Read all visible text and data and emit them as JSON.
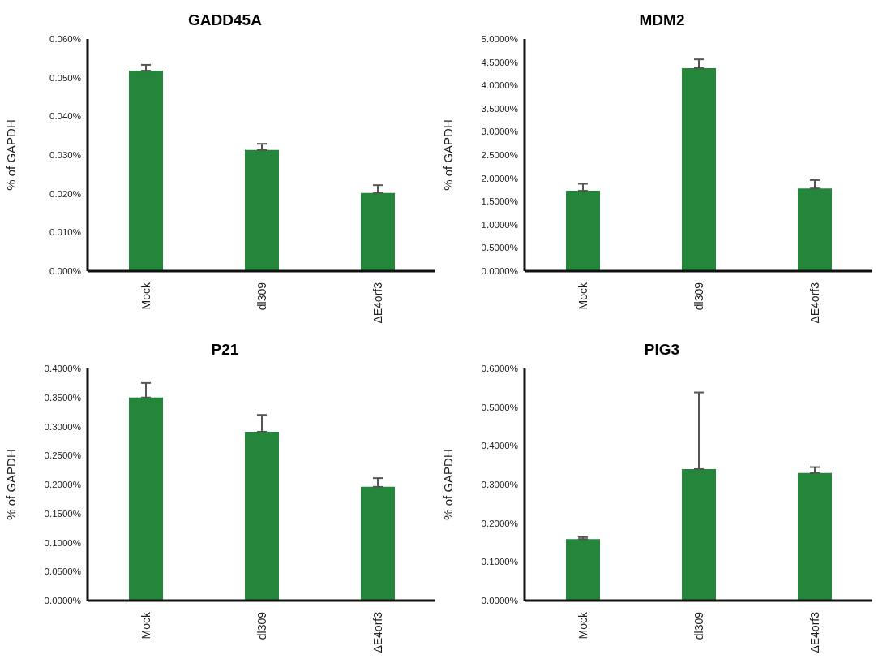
{
  "chart_data": [
    {
      "type": "bar",
      "title": "GADD45A",
      "ylabel": "% of GAPDH",
      "categories": [
        "Mock",
        "dl309",
        "ΔE4orf3"
      ],
      "values": [
        0.0518,
        0.0313,
        0.0202
      ],
      "errors": [
        [
          0.0518,
          0.0533
        ],
        [
          0.0313,
          0.0329
        ],
        [
          0.0202,
          0.0222
        ]
      ],
      "color": "#23863a",
      "ylim": [
        0,
        0.06
      ],
      "yticks": [
        {
          "value": 0,
          "label": "0.000%"
        },
        {
          "value": 0.01,
          "label": "0.010%"
        },
        {
          "value": 0.02,
          "label": "0.020%"
        },
        {
          "value": 0.03,
          "label": "0.030%"
        },
        {
          "value": 0.04,
          "label": "0.040%"
        },
        {
          "value": 0.05,
          "label": "0.050%"
        },
        {
          "value": 0.06,
          "label": "0.060%"
        }
      ],
      "grid": false,
      "legend": false
    },
    {
      "type": "bar",
      "title": "MDM2",
      "ylabel": "% of GAPDH",
      "categories": [
        "Mock",
        "dl309",
        "ΔE4orf3"
      ],
      "values": [
        1.73,
        4.37,
        1.78
      ],
      "errors": [
        [
          1.73,
          1.88
        ],
        [
          4.37,
          4.56
        ],
        [
          1.78,
          1.96
        ]
      ],
      "color": "#23863a",
      "ylim": [
        0,
        5
      ],
      "yticks": [
        {
          "value": 0,
          "label": "0.0000%"
        },
        {
          "value": 0.5,
          "label": "0.5000%"
        },
        {
          "value": 1,
          "label": "1.0000%"
        },
        {
          "value": 1.5,
          "label": "1.5000%"
        },
        {
          "value": 2,
          "label": "2.0000%"
        },
        {
          "value": 2.5,
          "label": "2.5000%"
        },
        {
          "value": 3,
          "label": "3.0000%"
        },
        {
          "value": 3.5,
          "label": "3.5000%"
        },
        {
          "value": 4,
          "label": "4.0000%"
        },
        {
          "value": 4.5,
          "label": "4.5000%"
        },
        {
          "value": 5,
          "label": "5.0000%"
        }
      ],
      "grid": false,
      "legend": false
    },
    {
      "type": "bar",
      "title": "P21",
      "ylabel": "% of GAPDH",
      "categories": [
        "Mock",
        "dl309",
        "ΔE4orf3"
      ],
      "values": [
        0.35,
        0.291,
        0.196
      ],
      "errors": [
        [
          0.35,
          0.375
        ],
        [
          0.291,
          0.32
        ],
        [
          0.196,
          0.211
        ]
      ],
      "color": "#23863a",
      "ylim": [
        0,
        0.4
      ],
      "yticks": [
        {
          "value": 0,
          "label": "0.0000%"
        },
        {
          "value": 0.05,
          "label": "0.0500%"
        },
        {
          "value": 0.1,
          "label": "0.1000%"
        },
        {
          "value": 0.15,
          "label": "0.1500%"
        },
        {
          "value": 0.2,
          "label": "0.2000%"
        },
        {
          "value": 0.25,
          "label": "0.2500%"
        },
        {
          "value": 0.3,
          "label": "0.3000%"
        },
        {
          "value": 0.35,
          "label": "0.3500%"
        },
        {
          "value": 0.4,
          "label": "0.4000%"
        }
      ],
      "grid": false,
      "legend": false
    },
    {
      "type": "bar",
      "title": "PIG3",
      "ylabel": "% of GAPDH",
      "categories": [
        "Mock",
        "dl309",
        "ΔE4orf3"
      ],
      "values": [
        0.159,
        0.34,
        0.33
      ],
      "errors": [
        [
          0.159,
          0.164
        ],
        [
          0.34,
          0.538
        ],
        [
          0.33,
          0.345
        ]
      ],
      "color": "#23863a",
      "ylim": [
        0,
        0.6
      ],
      "yticks": [
        {
          "value": 0,
          "label": "0.0000%"
        },
        {
          "value": 0.1,
          "label": "0.1000%"
        },
        {
          "value": 0.2,
          "label": "0.2000%"
        },
        {
          "value": 0.3,
          "label": "0.3000%"
        },
        {
          "value": 0.4,
          "label": "0.4000%"
        },
        {
          "value": 0.5,
          "label": "0.5000%"
        },
        {
          "value": 0.6,
          "label": "0.6000%"
        }
      ],
      "grid": false,
      "legend": false
    }
  ]
}
